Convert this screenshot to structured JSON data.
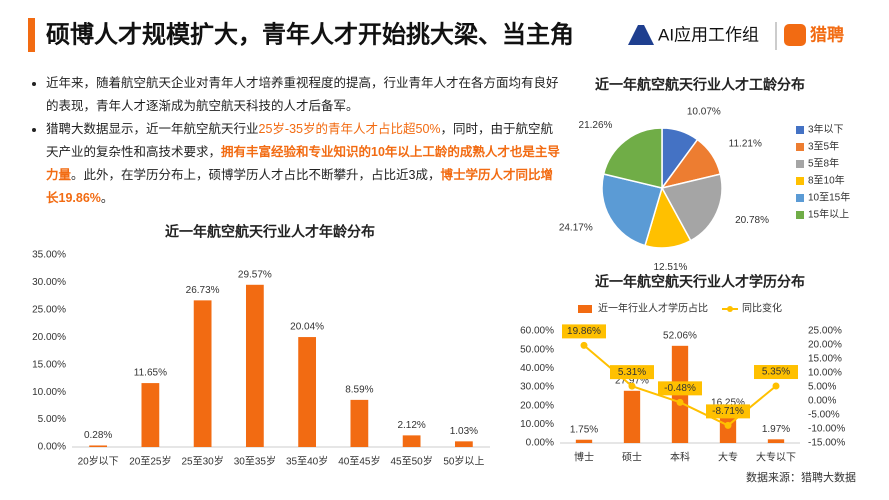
{
  "header": {
    "title": "硕博人才规模扩大，青年人才开始挑大梁、当主角",
    "logo_text": "AI应用工作组",
    "brand": "猎聘"
  },
  "bullets": [
    {
      "segments": [
        "近年来，随着航空航天企业对青年人才培养重视程度的提高，行业青年人才在各方面均有良好的表现，青年人才逐渐成为航空航天科技的人才后备军。"
      ]
    },
    {
      "segments": [
        "猎聘大数据显示，近一年航空航天行业",
        "25岁-35岁的青年人才占比超50%",
        "，同时，由于航空航天产业的复杂性和高技术要求，",
        "拥有丰富经验和专业知识的10年以上工龄的成熟人才也是主导力量",
        "。此外，在学历分布上，硕博学历人才占比不断攀升，占比近3成，",
        "博士学历人才同比增长19.86%",
        "。"
      ]
    }
  ],
  "source": "数据来源：猎聘大数据",
  "chart_data": [
    {
      "type": "bar",
      "title": "近一年航空航天行业人才年龄分布",
      "categories": [
        "20岁以下",
        "20至25岁",
        "25至30岁",
        "30至35岁",
        "35至40岁",
        "40至45岁",
        "45至50岁",
        "50岁以上"
      ],
      "values": [
        0.28,
        11.65,
        26.73,
        29.57,
        20.04,
        8.59,
        2.12,
        1.03
      ],
      "value_labels": [
        "0.28%",
        "11.65%",
        "26.73%",
        "29.57%",
        "20.04%",
        "8.59%",
        "2.12%",
        "1.03%"
      ],
      "color": "#f26b12",
      "ylim": [
        0,
        35
      ],
      "yticks": [
        {
          "value": 0,
          "label": "0.00%"
        },
        {
          "value": 5,
          "label": "5.00%"
        },
        {
          "value": 10,
          "label": "10.00%"
        },
        {
          "value": 15,
          "label": "15.00%"
        },
        {
          "value": 20,
          "label": "20.00%"
        },
        {
          "value": 25,
          "label": "25.00%"
        },
        {
          "value": 30,
          "label": "30.00%"
        },
        {
          "value": 35,
          "label": "35.00%"
        }
      ]
    },
    {
      "type": "pie",
      "title": "近一年航空航天行业人才工龄分布",
      "categories": [
        "3年以下",
        "3至5年",
        "5至8年",
        "8至10年",
        "10至15年",
        "15年以上"
      ],
      "values": [
        10.07,
        11.21,
        20.78,
        12.51,
        24.17,
        21.26
      ],
      "value_labels": [
        "10.07%",
        "11.21%",
        "20.78%",
        "12.51%",
        "24.17%",
        "21.26%"
      ],
      "colors": [
        "#4472c4",
        "#ed7d31",
        "#a5a5a5",
        "#ffc000",
        "#5b9bd5",
        "#70ad47"
      ],
      "legend": "right"
    },
    {
      "type": "combo",
      "title": "近一年航空航天行业人才学历分布",
      "categories": [
        "博士",
        "硕士",
        "本科",
        "大专",
        "大专以下"
      ],
      "series": [
        {
          "name": "近一年行业人才学历占比",
          "color": "#f26b12",
          "values": [
            1.75,
            27.97,
            52.06,
            16.25,
            1.97
          ],
          "value_labels": [
            "1.75%",
            "27.97%",
            "52.06%",
            "16.25%",
            "1.97%"
          ]
        },
        {
          "name": "同比变化",
          "color": "#ffc000",
          "axis": "y2",
          "values": [
            19.86,
            5.31,
            -0.48,
            -8.71,
            5.35
          ],
          "value_labels": [
            "19.86%",
            "5.31%",
            "-0.48%",
            "-8.71%",
            "5.35%"
          ]
        }
      ],
      "ylim": [
        0,
        60
      ],
      "yticks": [
        {
          "value": 0,
          "label": "0.00%"
        },
        {
          "value": 10,
          "label": "10.00%"
        },
        {
          "value": 20,
          "label": "20.00%"
        },
        {
          "value": 30,
          "label": "30.00%"
        },
        {
          "value": 40,
          "label": "40.00%"
        },
        {
          "value": 50,
          "label": "50.00%"
        },
        {
          "value": 60,
          "label": "60.00%"
        }
      ],
      "y2lim": [
        -15,
        25
      ],
      "y2ticks": [
        {
          "value": -15,
          "label": "-15.00%"
        },
        {
          "value": -10,
          "label": "-10.00%"
        },
        {
          "value": -5,
          "label": "-5.00%"
        },
        {
          "value": 0,
          "label": "0.00%"
        },
        {
          "value": 5,
          "label": "5.00%"
        },
        {
          "value": 10,
          "label": "10.00%"
        },
        {
          "value": 15,
          "label": "15.00%"
        },
        {
          "value": 20,
          "label": "20.00%"
        },
        {
          "value": 25,
          "label": "25.00%"
        }
      ],
      "legend": "top"
    }
  ]
}
